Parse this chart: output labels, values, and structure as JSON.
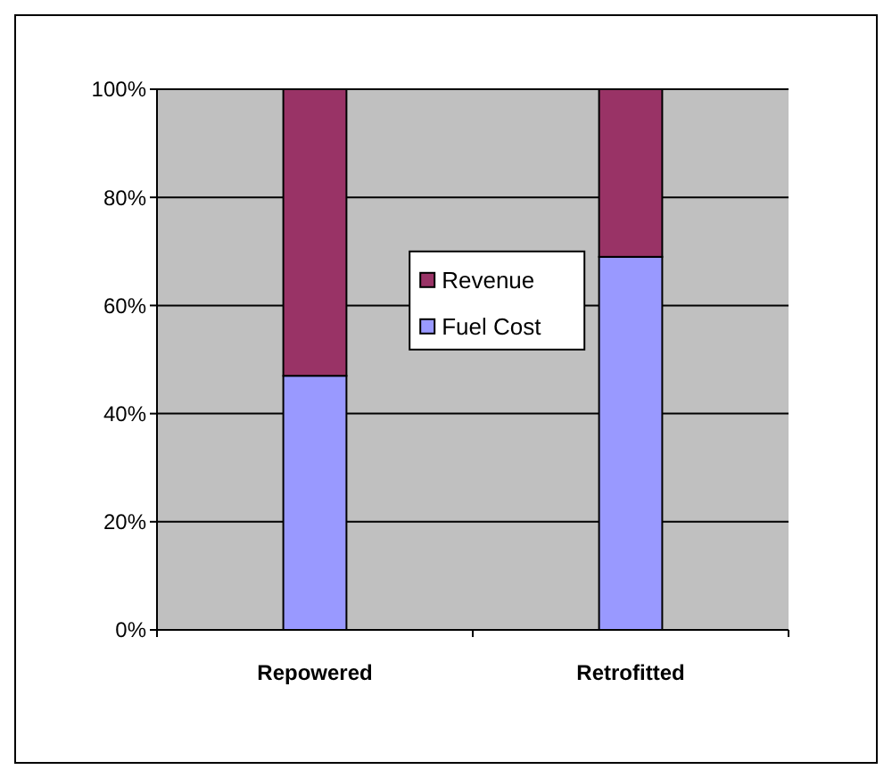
{
  "chart_data": {
    "type": "bar",
    "stacked": true,
    "categories": [
      "Repowered",
      "Retrofitted"
    ],
    "series": [
      {
        "name": "Fuel Cost",
        "color": "#9999ff",
        "values": [
          47,
          69
        ]
      },
      {
        "name": "Revenue",
        "color": "#993366",
        "values": [
          53,
          31
        ]
      }
    ],
    "ylim": [
      0,
      100
    ],
    "yticks": [
      {
        "value": 0,
        "label": "0%"
      },
      {
        "value": 20,
        "label": "20%"
      },
      {
        "value": 40,
        "label": "40%"
      },
      {
        "value": 60,
        "label": "60%"
      },
      {
        "value": 80,
        "label": "80%"
      },
      {
        "value": 100,
        "label": "100%"
      }
    ],
    "grid": "y",
    "legend": "center"
  }
}
